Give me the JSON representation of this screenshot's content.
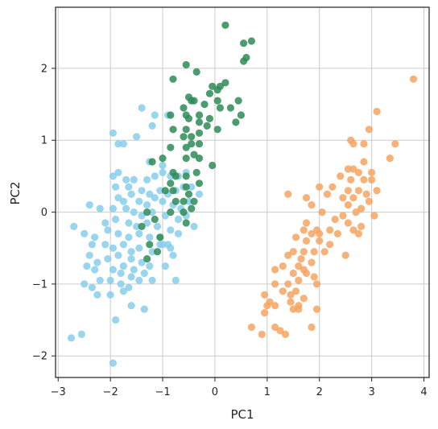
{
  "chart_data": {
    "type": "scatter",
    "title": "",
    "xlabel": "PC1",
    "ylabel": "PC2",
    "xlim": [
      -3.05,
      4.1
    ],
    "ylim": [
      -2.3,
      2.85
    ],
    "xticks": [
      -3,
      -2,
      -1,
      0,
      1,
      2,
      3,
      4
    ],
    "yticks": [
      -2,
      -1,
      0,
      1,
      2
    ],
    "xtick_labels": [
      "−3",
      "−2",
      "−1",
      "0",
      "1",
      "2",
      "3",
      "4"
    ],
    "ytick_labels": [
      "−2",
      "−1",
      "0",
      "1",
      "2"
    ],
    "grid": true,
    "legend": "none",
    "series": [
      {
        "color": "#87ceeb",
        "points": [
          [
            -1.4,
            1.45
          ],
          [
            -1.15,
            1.35
          ],
          [
            -1.95,
            1.1
          ],
          [
            -1.85,
            0.95
          ],
          [
            -1.75,
            0.95
          ],
          [
            -1.5,
            1.05
          ],
          [
            -1.2,
            1.2
          ],
          [
            -0.9,
            1.35
          ],
          [
            -1.25,
            0.7
          ],
          [
            -1.0,
            0.65
          ],
          [
            -1.85,
            0.55
          ],
          [
            -1.95,
            0.5
          ],
          [
            -1.7,
            0.45
          ],
          [
            -1.55,
            0.45
          ],
          [
            -1.3,
            0.45
          ],
          [
            -1.15,
            0.5
          ],
          [
            -1.0,
            0.55
          ],
          [
            -0.85,
            0.5
          ],
          [
            -0.7,
            0.5
          ],
          [
            -0.55,
            0.55
          ],
          [
            -1.9,
            0.35
          ],
          [
            -1.65,
            0.35
          ],
          [
            -1.4,
            0.3
          ],
          [
            -1.25,
            0.25
          ],
          [
            -1.05,
            0.3
          ],
          [
            -0.9,
            0.25
          ],
          [
            -0.75,
            0.3
          ],
          [
            -0.6,
            0.35
          ],
          [
            -0.45,
            0.35
          ],
          [
            -0.3,
            0.25
          ],
          [
            -1.85,
            0.2
          ],
          [
            -1.75,
            0.15
          ],
          [
            -1.6,
            0.25
          ],
          [
            -1.45,
            0.15
          ],
          [
            -1.3,
            0.1
          ],
          [
            -1.15,
            0.2
          ],
          [
            -1.0,
            0.15
          ],
          [
            -0.8,
            0.1
          ],
          [
            -0.65,
            0.05
          ],
          [
            -0.5,
            0.15
          ],
          [
            -2.4,
            0.1
          ],
          [
            -2.2,
            0.05
          ],
          [
            -1.95,
            0.05
          ],
          [
            -1.7,
            0.05
          ],
          [
            -1.55,
            0.0
          ],
          [
            -1.4,
            -0.05
          ],
          [
            -1.2,
            0.0
          ],
          [
            -0.95,
            -0.05
          ],
          [
            -0.7,
            -0.1
          ],
          [
            -0.55,
            -0.05
          ],
          [
            -2.7,
            -0.2
          ],
          [
            -2.1,
            -0.15
          ],
          [
            -1.9,
            -0.1
          ],
          [
            -1.65,
            -0.15
          ],
          [
            -1.5,
            -0.2
          ],
          [
            -1.3,
            -0.15
          ],
          [
            -1.1,
            -0.2
          ],
          [
            -0.85,
            -0.25
          ],
          [
            -0.7,
            -0.3
          ],
          [
            -0.4,
            -0.2
          ],
          [
            -2.5,
            -0.3
          ],
          [
            -2.3,
            -0.35
          ],
          [
            -2.05,
            -0.25
          ],
          [
            -1.85,
            -0.3
          ],
          [
            -1.65,
            -0.35
          ],
          [
            -1.45,
            -0.3
          ],
          [
            -1.25,
            -0.35
          ],
          [
            -1.05,
            -0.45
          ],
          [
            -0.9,
            -0.45
          ],
          [
            -0.8,
            -0.6
          ],
          [
            -2.35,
            -0.45
          ],
          [
            -2.1,
            -0.45
          ],
          [
            -1.95,
            -0.5
          ],
          [
            -1.75,
            -0.45
          ],
          [
            -1.6,
            -0.55
          ],
          [
            -1.45,
            -0.5
          ],
          [
            -1.2,
            -0.55
          ],
          [
            -1.0,
            -0.45
          ],
          [
            -0.85,
            -0.5
          ],
          [
            -2.4,
            -0.6
          ],
          [
            -2.25,
            -0.7
          ],
          [
            -2.05,
            -0.65
          ],
          [
            -1.85,
            -0.6
          ],
          [
            -1.6,
            -0.65
          ],
          [
            -1.4,
            -0.7
          ],
          [
            -1.25,
            -0.75
          ],
          [
            -0.95,
            -0.75
          ],
          [
            -2.45,
            -0.75
          ],
          [
            -2.3,
            -0.8
          ],
          [
            -1.95,
            -0.8
          ],
          [
            -1.75,
            -0.75
          ],
          [
            -1.55,
            -0.8
          ],
          [
            -1.35,
            -0.85
          ],
          [
            -1.2,
            -0.95
          ],
          [
            -2.2,
            -0.95
          ],
          [
            -2.0,
            -0.95
          ],
          [
            -1.8,
            -0.85
          ],
          [
            -1.6,
            -0.9
          ],
          [
            -1.45,
            -0.95
          ],
          [
            -0.75,
            -0.95
          ],
          [
            -1.8,
            -1.0
          ],
          [
            -1.65,
            -1.05
          ],
          [
            -2.25,
            -1.15
          ],
          [
            -2.0,
            -1.15
          ],
          [
            -1.75,
            -1.1
          ],
          [
            -2.5,
            -1.0
          ],
          [
            -2.35,
            -1.05
          ],
          [
            -1.6,
            -1.3
          ],
          [
            -1.35,
            -1.35
          ],
          [
            -1.9,
            -1.5
          ],
          [
            -2.55,
            -1.7
          ],
          [
            -2.75,
            -1.75
          ],
          [
            -1.95,
            -2.1
          ],
          [
            -1.05,
            -0.35
          ]
        ]
      },
      {
        "color": "#2e8b57",
        "points": [
          [
            0.2,
            2.6
          ],
          [
            0.55,
            2.35
          ],
          [
            0.7,
            2.38
          ],
          [
            0.6,
            2.15
          ],
          [
            0.55,
            2.1
          ],
          [
            -0.55,
            2.05
          ],
          [
            -0.35,
            1.95
          ],
          [
            -0.8,
            1.85
          ],
          [
            -0.05,
            1.75
          ],
          [
            0.1,
            1.75
          ],
          [
            -0.1,
            1.65
          ],
          [
            0.2,
            1.8
          ],
          [
            0.05,
            1.7
          ],
          [
            -0.5,
            1.6
          ],
          [
            -0.45,
            1.55
          ],
          [
            -0.4,
            1.55
          ],
          [
            -0.6,
            1.45
          ],
          [
            -0.2,
            1.5
          ],
          [
            0.05,
            1.55
          ],
          [
            0.1,
            1.45
          ],
          [
            0.45,
            1.55
          ],
          [
            0.5,
            1.35
          ],
          [
            0.4,
            1.25
          ],
          [
            0.3,
            1.45
          ],
          [
            -0.85,
            1.35
          ],
          [
            -0.55,
            1.35
          ],
          [
            -0.3,
            1.35
          ],
          [
            -0.5,
            1.3
          ],
          [
            -0.1,
            1.3
          ],
          [
            -0.3,
            1.25
          ],
          [
            -0.15,
            1.2
          ],
          [
            -0.55,
            1.15
          ],
          [
            -0.8,
            1.15
          ],
          [
            -0.6,
            1.05
          ],
          [
            0.05,
            1.15
          ],
          [
            -0.3,
            1.1
          ],
          [
            -0.45,
            1.05
          ],
          [
            -0.3,
            0.95
          ],
          [
            -0.45,
            0.95
          ],
          [
            -0.55,
            0.9
          ],
          [
            -0.85,
            0.9
          ],
          [
            -0.4,
            0.8
          ],
          [
            -0.55,
            0.75
          ],
          [
            -0.3,
            0.75
          ],
          [
            -1.0,
            0.75
          ],
          [
            -1.2,
            0.7
          ],
          [
            -0.05,
            0.65
          ],
          [
            -0.8,
            0.55
          ],
          [
            -0.75,
            0.5
          ],
          [
            -0.55,
            0.5
          ],
          [
            -0.35,
            0.55
          ],
          [
            -0.3,
            0.4
          ],
          [
            -0.85,
            0.4
          ],
          [
            -0.8,
            0.3
          ],
          [
            -0.95,
            0.3
          ],
          [
            -0.55,
            0.35
          ],
          [
            -0.5,
            0.25
          ],
          [
            -0.6,
            0.15
          ],
          [
            -0.75,
            0.15
          ],
          [
            -0.4,
            0.15
          ],
          [
            -1.3,
            0.0
          ],
          [
            -0.85,
            0.0
          ],
          [
            -0.6,
            0.0
          ],
          [
            -0.45,
            0.05
          ],
          [
            -1.15,
            -0.1
          ],
          [
            -1.4,
            -0.2
          ],
          [
            -1.25,
            -0.45
          ],
          [
            -1.05,
            -0.35
          ],
          [
            -1.3,
            -0.65
          ],
          [
            -1.1,
            -0.55
          ],
          [
            -0.55,
            -0.15
          ]
        ]
      },
      {
        "color": "#f4a460",
        "points": [
          [
            3.8,
            1.85
          ],
          [
            3.1,
            1.4
          ],
          [
            2.95,
            1.15
          ],
          [
            2.6,
            1.0
          ],
          [
            2.65,
            0.95
          ],
          [
            2.85,
            0.95
          ],
          [
            3.45,
            0.95
          ],
          [
            3.35,
            0.75
          ],
          [
            2.85,
            0.7
          ],
          [
            2.65,
            0.6
          ],
          [
            2.55,
            0.6
          ],
          [
            2.75,
            0.55
          ],
          [
            3.0,
            0.55
          ],
          [
            2.4,
            0.5
          ],
          [
            2.6,
            0.45
          ],
          [
            2.85,
            0.45
          ],
          [
            3.0,
            0.45
          ],
          [
            2.25,
            0.35
          ],
          [
            2.55,
            0.3
          ],
          [
            2.75,
            0.3
          ],
          [
            2.9,
            0.25
          ],
          [
            3.1,
            0.3
          ],
          [
            2.0,
            0.35
          ],
          [
            2.15,
            0.25
          ],
          [
            1.4,
            0.25
          ],
          [
            1.75,
            0.2
          ],
          [
            2.45,
            0.2
          ],
          [
            2.65,
            0.2
          ],
          [
            2.95,
            0.15
          ],
          [
            1.85,
            0.1
          ],
          [
            2.55,
            0.1
          ],
          [
            2.8,
            0.05
          ],
          [
            2.05,
            0.0
          ],
          [
            2.45,
            -0.05
          ],
          [
            2.7,
            0.0
          ],
          [
            3.05,
            -0.05
          ],
          [
            1.75,
            -0.15
          ],
          [
            2.3,
            -0.1
          ],
          [
            2.55,
            -0.15
          ],
          [
            2.8,
            -0.2
          ],
          [
            1.7,
            -0.25
          ],
          [
            1.95,
            -0.25
          ],
          [
            2.2,
            -0.25
          ],
          [
            2.65,
            -0.25
          ],
          [
            1.85,
            -0.3
          ],
          [
            2.0,
            -0.3
          ],
          [
            2.35,
            -0.3
          ],
          [
            2.75,
            -0.3
          ],
          [
            1.55,
            -0.35
          ],
          [
            1.75,
            -0.4
          ],
          [
            2.0,
            -0.4
          ],
          [
            2.2,
            -0.45
          ],
          [
            1.5,
            -0.55
          ],
          [
            1.7,
            -0.55
          ],
          [
            1.9,
            -0.55
          ],
          [
            2.1,
            -0.55
          ],
          [
            2.5,
            -0.6
          ],
          [
            1.4,
            -0.6
          ],
          [
            1.65,
            -0.65
          ],
          [
            1.85,
            -0.7
          ],
          [
            1.3,
            -0.75
          ],
          [
            1.6,
            -0.75
          ],
          [
            1.7,
            -0.8
          ],
          [
            1.15,
            -0.8
          ],
          [
            1.5,
            -0.85
          ],
          [
            1.75,
            -0.85
          ],
          [
            1.9,
            -0.9
          ],
          [
            1.6,
            -0.95
          ],
          [
            1.4,
            -1.0
          ],
          [
            1.95,
            -1.0
          ],
          [
            1.15,
            -1.0
          ],
          [
            1.3,
            -1.1
          ],
          [
            1.55,
            -1.1
          ],
          [
            1.45,
            -1.15
          ],
          [
            1.7,
            -1.2
          ],
          [
            0.95,
            -1.15
          ],
          [
            1.05,
            -1.25
          ],
          [
            1.45,
            -1.25
          ],
          [
            1.6,
            -1.3
          ],
          [
            1.0,
            -1.3
          ],
          [
            1.15,
            -1.3
          ],
          [
            1.95,
            -1.35
          ],
          [
            0.95,
            -1.4
          ],
          [
            1.5,
            -1.35
          ],
          [
            1.6,
            -1.35
          ],
          [
            0.7,
            -1.6
          ],
          [
            1.15,
            -1.6
          ],
          [
            0.9,
            -1.7
          ],
          [
            1.25,
            -1.65
          ],
          [
            1.85,
            -1.6
          ],
          [
            1.35,
            -1.7
          ]
        ]
      }
    ]
  }
}
